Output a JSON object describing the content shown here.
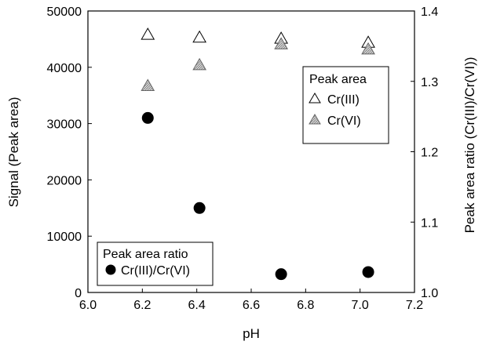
{
  "chart_data": {
    "type": "scatter",
    "xlabel": "pH",
    "ylabel_left": "Signal (Peak area)",
    "ylabel_right": "Peak area ratio (Cr(III)/Cr(VI))",
    "xlim": [
      6.0,
      7.2
    ],
    "ylim_left": [
      0,
      50000
    ],
    "ylim_right": [
      1.0,
      1.4
    ],
    "x_ticks": [
      "6.0",
      "6.2",
      "6.4",
      "6.6",
      "6.8",
      "7.0",
      "7.2"
    ],
    "y_left_ticks": [
      "0",
      "10000",
      "20000",
      "30000",
      "40000",
      "50000"
    ],
    "y_right_ticks": [
      "1.0",
      "1.1",
      "1.2",
      "1.3",
      "1.4"
    ],
    "series": [
      {
        "name": "Cr(III)",
        "axis": "left",
        "marker": "open-triangle",
        "points": [
          {
            "x": 6.22,
            "y": 45800
          },
          {
            "x": 6.41,
            "y": 45300
          },
          {
            "x": 6.71,
            "y": 45100
          },
          {
            "x": 7.03,
            "y": 44400
          }
        ]
      },
      {
        "name": "Cr(VI)",
        "axis": "left",
        "marker": "hatched-triangle",
        "points": [
          {
            "x": 6.22,
            "y": 36700
          },
          {
            "x": 6.41,
            "y": 40400
          },
          {
            "x": 6.71,
            "y": 44100
          },
          {
            "x": 7.03,
            "y": 43200
          }
        ]
      },
      {
        "name": "Cr(III)/Cr(VI)",
        "axis": "right",
        "marker": "filled-circle",
        "points": [
          {
            "x": 6.22,
            "y": 1.248
          },
          {
            "x": 6.41,
            "y": 1.12
          },
          {
            "x": 6.71,
            "y": 1.026
          },
          {
            "x": 7.03,
            "y": 1.029
          }
        ]
      }
    ],
    "legends": {
      "peak_area": {
        "title": "Peak area",
        "entries": [
          "Cr(III)",
          "Cr(VI)"
        ],
        "placement": "upper-right"
      },
      "ratio": {
        "title": "Peak area ratio",
        "entries": [
          "Cr(III)/Cr(VI)"
        ],
        "placement": "lower-left"
      }
    }
  }
}
